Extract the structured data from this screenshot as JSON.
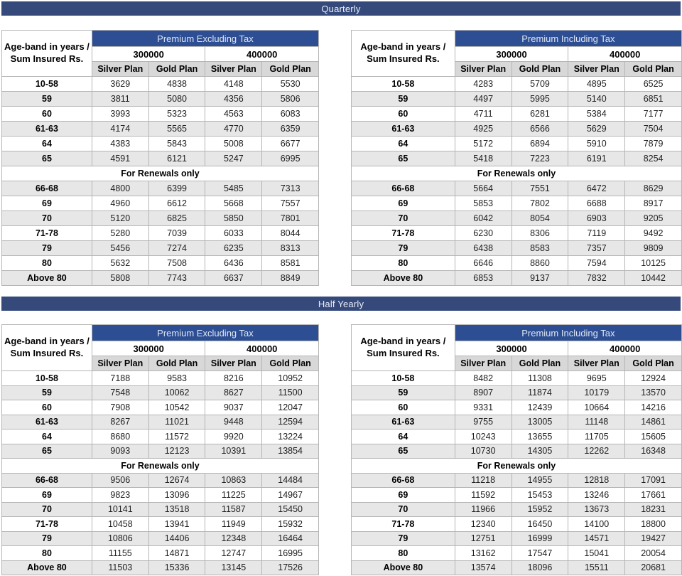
{
  "age_band_header": {
    "line1": "Age-band in years /",
    "line2": "Sum Insured Rs."
  },
  "sum_insured_options": [
    "300000",
    "400000"
  ],
  "plan_headers": [
    "Silver Plan",
    "Gold Plan",
    "Silver Plan",
    "Gold Plan"
  ],
  "renewals_label": "For Renewals only",
  "colors": {
    "banner_bg": "#35497B",
    "table_header_bg": "#2E4E93",
    "header_text": "#DCE6F5",
    "plan_row_bg": "#D8D8D8",
    "stripe_row_bg": "#E8E7E7",
    "grid_line": "#B5B5B5"
  },
  "sections": [
    {
      "title": "Quarterly",
      "tables": [
        {
          "title": "Premium Excluding Tax",
          "rows": [
            {
              "age": "10-58",
              "values": [
                3629,
                4838,
                4148,
                5530
              ]
            },
            {
              "age": "59",
              "values": [
                3811,
                5080,
                4356,
                5806
              ]
            },
            {
              "age": "60",
              "values": [
                3993,
                5323,
                4563,
                6083
              ]
            },
            {
              "age": "61-63",
              "values": [
                4174,
                5565,
                4770,
                6359
              ]
            },
            {
              "age": "64",
              "values": [
                4383,
                5843,
                5008,
                6677
              ]
            },
            {
              "age": "65",
              "values": [
                4591,
                6121,
                5247,
                6995
              ]
            },
            {
              "separator": "For Renewals only"
            },
            {
              "age": "66-68",
              "values": [
                4800,
                6399,
                5485,
                7313
              ]
            },
            {
              "age": "69",
              "values": [
                4960,
                6612,
                5668,
                7557
              ]
            },
            {
              "age": "70",
              "values": [
                5120,
                6825,
                5850,
                7801
              ]
            },
            {
              "age": "71-78",
              "values": [
                5280,
                7039,
                6033,
                8044
              ]
            },
            {
              "age": "79",
              "values": [
                5456,
                7274,
                6235,
                8313
              ]
            },
            {
              "age": "80",
              "values": [
                5632,
                7508,
                6436,
                8581
              ]
            },
            {
              "age": "Above 80",
              "values": [
                5808,
                7743,
                6637,
                8849
              ]
            }
          ]
        },
        {
          "title": "Premium Including Tax",
          "rows": [
            {
              "age": "10-58",
              "values": [
                4283,
                5709,
                4895,
                6525
              ]
            },
            {
              "age": "59",
              "values": [
                4497,
                5995,
                5140,
                6851
              ]
            },
            {
              "age": "60",
              "values": [
                4711,
                6281,
                5384,
                7177
              ]
            },
            {
              "age": "61-63",
              "values": [
                4925,
                6566,
                5629,
                7504
              ]
            },
            {
              "age": "64",
              "values": [
                5172,
                6894,
                5910,
                7879
              ]
            },
            {
              "age": "65",
              "values": [
                5418,
                7223,
                6191,
                8254
              ]
            },
            {
              "separator": "For Renewals only"
            },
            {
              "age": "66-68",
              "values": [
                5664,
                7551,
                6472,
                8629
              ]
            },
            {
              "age": "69",
              "values": [
                5853,
                7802,
                6688,
                8917
              ]
            },
            {
              "age": "70",
              "values": [
                6042,
                8054,
                6903,
                9205
              ]
            },
            {
              "age": "71-78",
              "values": [
                6230,
                8306,
                7119,
                9492
              ]
            },
            {
              "age": "79",
              "values": [
                6438,
                8583,
                7357,
                9809
              ]
            },
            {
              "age": "80",
              "values": [
                6646,
                8860,
                7594,
                10125
              ]
            },
            {
              "age": "Above 80",
              "values": [
                6853,
                9137,
                7832,
                10442
              ]
            }
          ]
        }
      ]
    },
    {
      "title": "Half Yearly",
      "tables": [
        {
          "title": "Premium Excluding Tax",
          "rows": [
            {
              "age": "10-58",
              "values": [
                7188,
                9583,
                8216,
                10952
              ]
            },
            {
              "age": "59",
              "values": [
                7548,
                10062,
                8627,
                11500
              ]
            },
            {
              "age": "60",
              "values": [
                7908,
                10542,
                9037,
                12047
              ]
            },
            {
              "age": "61-63",
              "values": [
                8267,
                11021,
                9448,
                12594
              ]
            },
            {
              "age": "64",
              "values": [
                8680,
                11572,
                9920,
                13224
              ]
            },
            {
              "age": "65",
              "values": [
                9093,
                12123,
                10391,
                13854
              ]
            },
            {
              "separator": "For Renewals only"
            },
            {
              "age": "66-68",
              "values": [
                9506,
                12674,
                10863,
                14484
              ]
            },
            {
              "age": "69",
              "values": [
                9823,
                13096,
                11225,
                14967
              ]
            },
            {
              "age": "70",
              "values": [
                10141,
                13518,
                11587,
                15450
              ]
            },
            {
              "age": "71-78",
              "values": [
                10458,
                13941,
                11949,
                15932
              ]
            },
            {
              "age": "79",
              "values": [
                10806,
                14406,
                12348,
                16464
              ]
            },
            {
              "age": "80",
              "values": [
                11155,
                14871,
                12747,
                16995
              ]
            },
            {
              "age": "Above 80",
              "values": [
                11503,
                15336,
                13145,
                17526
              ]
            }
          ]
        },
        {
          "title": "Premium Including Tax",
          "rows": [
            {
              "age": "10-58",
              "values": [
                8482,
                11308,
                9695,
                12924
              ]
            },
            {
              "age": "59",
              "values": [
                8907,
                11874,
                10179,
                13570
              ]
            },
            {
              "age": "60",
              "values": [
                9331,
                12439,
                10664,
                14216
              ]
            },
            {
              "age": "61-63",
              "values": [
                9755,
                13005,
                11148,
                14861
              ]
            },
            {
              "age": "64",
              "values": [
                10243,
                13655,
                11705,
                15605
              ]
            },
            {
              "age": "65",
              "values": [
                10730,
                14305,
                12262,
                16348
              ]
            },
            {
              "separator": "For Renewals only"
            },
            {
              "age": "66-68",
              "values": [
                11218,
                14955,
                12818,
                17091
              ]
            },
            {
              "age": "69",
              "values": [
                11592,
                15453,
                13246,
                17661
              ]
            },
            {
              "age": "70",
              "values": [
                11966,
                15952,
                13673,
                18231
              ]
            },
            {
              "age": "71-78",
              "values": [
                12340,
                16450,
                14100,
                18800
              ]
            },
            {
              "age": "79",
              "values": [
                12751,
                16999,
                14571,
                19427
              ]
            },
            {
              "age": "80",
              "values": [
                13162,
                17547,
                15041,
                20054
              ]
            },
            {
              "age": "Above 80",
              "values": [
                13574,
                18096,
                15511,
                20681
              ]
            }
          ]
        }
      ]
    }
  ]
}
